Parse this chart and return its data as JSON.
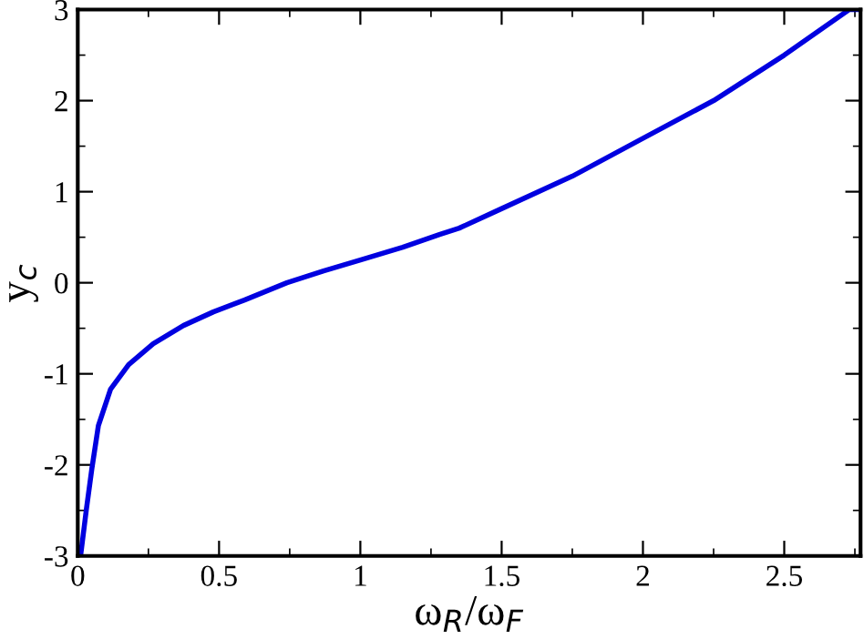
{
  "chart_data": {
    "type": "line",
    "xlabel": "ω$_{R}$/ω$_{F}$",
    "ylabel": "y$_{c}$",
    "xlim": [
      0,
      2.77
    ],
    "ylim": [
      -3,
      3
    ],
    "xticks": [
      0,
      0.5,
      1,
      1.5,
      2,
      2.5
    ],
    "yticks": [
      -3,
      -2,
      -1,
      0,
      1,
      2,
      3
    ],
    "grid": false,
    "legend": false,
    "marker": "none",
    "line_style": "solid",
    "series": [
      {
        "color": "#0000e0",
        "x": [
          0.01,
          0.03,
          0.05,
          0.073,
          0.116,
          0.18,
          0.267,
          0.374,
          0.48,
          0.59,
          0.74,
          0.87,
          1.0,
          1.15,
          1.28,
          1.35,
          1.49,
          1.75,
          1.99,
          2.25,
          2.5,
          2.73,
          2.77
        ],
        "values": [
          -3.0,
          -2.5,
          -2.04,
          -1.57,
          -1.17,
          -0.9,
          -0.67,
          -0.47,
          -0.32,
          -0.19,
          0.0,
          0.13,
          0.25,
          0.39,
          0.53,
          0.6,
          0.8,
          1.17,
          1.57,
          2.0,
          2.5,
          3.0,
          3.0
        ]
      }
    ]
  }
}
